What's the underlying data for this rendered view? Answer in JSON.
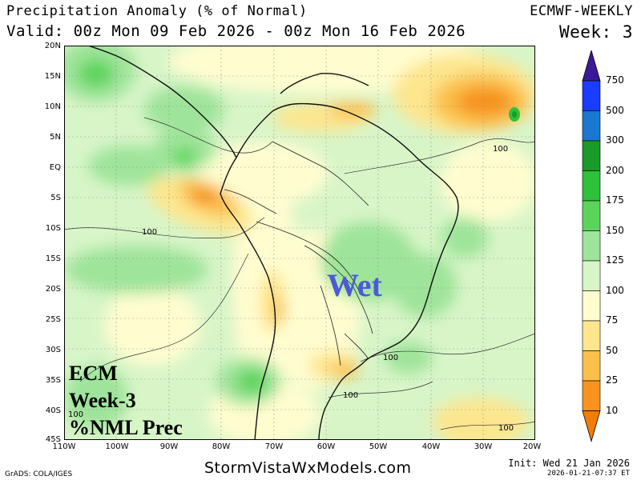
{
  "header": {
    "title": "Precipitation Anomaly (% of Normal)",
    "valid": "Valid: 00z Mon 09 Feb 2026 - 00z Mon 16 Feb 2026",
    "model": "ECMWF-WEEKLY",
    "week": "Week: 3"
  },
  "map": {
    "lat_labels": [
      "20N",
      "15N",
      "10N",
      "5N",
      "EQ",
      "5S",
      "10S",
      "15S",
      "20S",
      "25S",
      "30S",
      "35S",
      "40S",
      "45S"
    ],
    "lon_labels": [
      "110W",
      "100W",
      "90W",
      "80W",
      "70W",
      "60W",
      "50W",
      "40W",
      "30W",
      "20W"
    ],
    "contour_labels": [
      "100",
      "100",
      "100",
      "100",
      "100",
      "100"
    ],
    "annotation": "Wet",
    "overlay_lines": [
      "ECM",
      "Week-3",
      "%NML Prec"
    ]
  },
  "colorbar": {
    "labels": [
      "750",
      "500",
      "300",
      "200",
      "175",
      "150",
      "125",
      "100",
      "75",
      "50",
      "25",
      "10"
    ],
    "colors": [
      "#3a1a9a",
      "#1a3cff",
      "#1a78d0",
      "#1a9a2a",
      "#2ec13a",
      "#5cd45a",
      "#9ee49a",
      "#d8f5c8",
      "#fffdd0",
      "#fde68e",
      "#fbc04c",
      "#f7931e",
      "#f07d0a"
    ]
  },
  "footer": {
    "site": "StormVistaWxModels.com",
    "grads": "GrADS: COLA/IGES",
    "init": "Init: Wed 21 Jan 2026",
    "stamp": "2026-01-21-07:37 ET"
  }
}
